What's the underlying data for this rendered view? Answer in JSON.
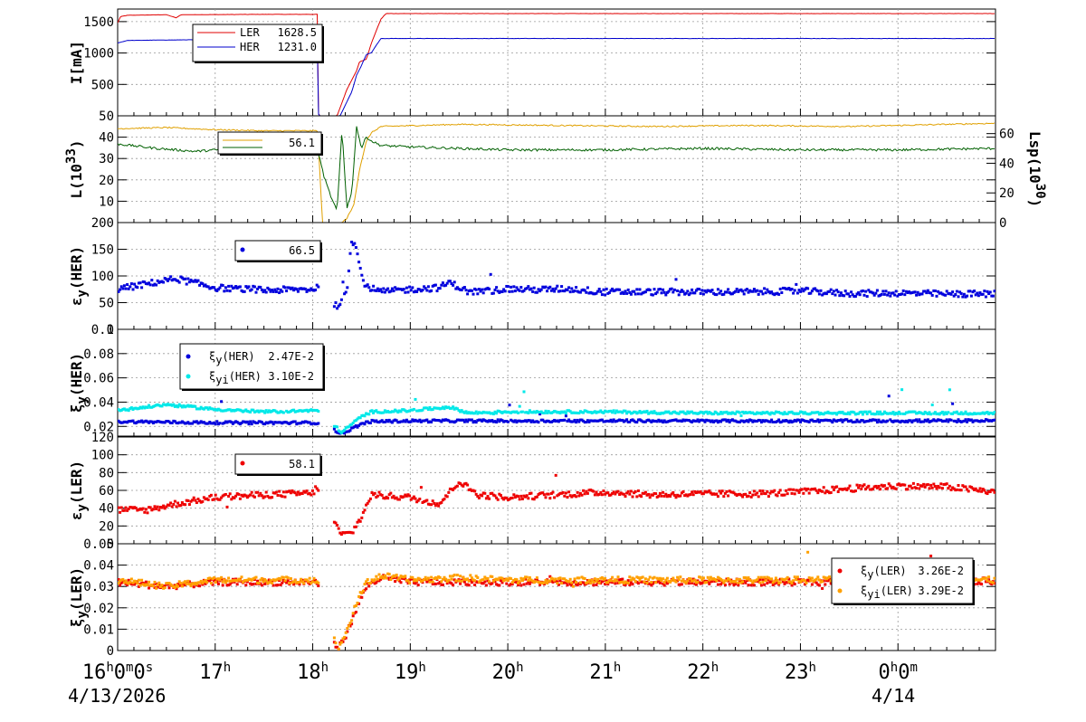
{
  "x_axis": {
    "ticks": [
      {
        "h": "16",
        "sub": [
          {
            "t": "h"
          },
          {
            "t": "0"
          },
          {
            "t": "m"
          },
          {
            "t": "0"
          },
          {
            "t": "s"
          }
        ]
      },
      {
        "h": "17",
        "sub": [
          {
            "t": "h"
          }
        ]
      },
      {
        "h": "18",
        "sub": [
          {
            "t": "h"
          }
        ]
      },
      {
        "h": "19",
        "sub": [
          {
            "t": "h"
          }
        ]
      },
      {
        "h": "20",
        "sub": [
          {
            "t": "h"
          }
        ]
      },
      {
        "h": "21",
        "sub": [
          {
            "t": "h"
          }
        ]
      },
      {
        "h": "22",
        "sub": [
          {
            "t": "h"
          }
        ]
      },
      {
        "h": "23",
        "sub": [
          {
            "t": "h"
          }
        ]
      },
      {
        "h": "0",
        "sub": [
          {
            "t": "h"
          },
          {
            "t": "0"
          },
          {
            "t": "m"
          }
        ]
      }
    ],
    "date_start": "4/13/2026",
    "date_next": "4/14",
    "range_hours": [
      16,
      25
    ]
  },
  "colors": {
    "ler": "#e00000",
    "her": "#0000cc",
    "lumi": "#e0a000",
    "lsp": "#006000",
    "xi_her_i": "#00e8e8",
    "xi_ler_i": "#ffa000",
    "grid": "#999999"
  },
  "chart_data": [
    {
      "type": "line",
      "id": "current",
      "ylabel": "I[mA]",
      "ylim": [
        0,
        1700
      ],
      "yticks": [
        "500",
        "1000",
        "1500"
      ],
      "series": [
        {
          "name": "LER",
          "value_text": "1628.5",
          "color": "#e00000",
          "points": [
            [
              16.0,
              1480
            ],
            [
              16.03,
              1580
            ],
            [
              16.1,
              1600
            ],
            [
              16.5,
              1610
            ],
            [
              16.6,
              1560
            ],
            [
              16.65,
              1610
            ],
            [
              17.5,
              1615
            ],
            [
              18.05,
              1615
            ],
            [
              18.06,
              0
            ],
            [
              18.25,
              0
            ],
            [
              18.35,
              420
            ],
            [
              18.45,
              720
            ],
            [
              18.48,
              860
            ],
            [
              18.55,
              900
            ],
            [
              18.6,
              1150
            ],
            [
              18.65,
              1350
            ],
            [
              18.7,
              1540
            ],
            [
              18.75,
              1628
            ],
            [
              25.0,
              1628
            ]
          ]
        },
        {
          "name": "HER",
          "value_text": "1231.0",
          "color": "#0000cc",
          "points": [
            [
              16.0,
              1160
            ],
            [
              16.1,
              1200
            ],
            [
              17.0,
              1215
            ],
            [
              18.05,
              1215
            ],
            [
              18.06,
              0
            ],
            [
              18.28,
              0
            ],
            [
              18.4,
              380
            ],
            [
              18.45,
              650
            ],
            [
              18.5,
              800
            ],
            [
              18.55,
              980
            ],
            [
              18.6,
              1000
            ],
            [
              18.65,
              1120
            ],
            [
              18.7,
              1231
            ],
            [
              25.0,
              1231
            ]
          ]
        }
      ]
    },
    {
      "type": "line",
      "id": "luminosity",
      "ylabel": "L(10",
      "ylabel_sup": "33",
      "ylabel_tail": ")",
      "ylabel_right": "Lsp(10",
      "ylabel_right_sup": "30",
      "ylabel_right_tail": ")",
      "ylim": [
        0,
        50
      ],
      "yticks": [
        "10",
        "20",
        "30",
        "40",
        "50"
      ],
      "ylim_right": [
        0,
        72
      ],
      "yticks_right": [
        "0",
        "20",
        "40",
        "60"
      ],
      "legend_text": "56.1",
      "series": [
        {
          "name": "L",
          "color": "#e0a000",
          "points": [
            [
              16.0,
              44
            ],
            [
              16.5,
              44.5
            ],
            [
              17.0,
              43.5
            ],
            [
              17.5,
              43
            ],
            [
              18.05,
              43
            ],
            [
              18.1,
              0
            ],
            [
              18.3,
              0
            ],
            [
              18.35,
              2
            ],
            [
              18.42,
              8
            ],
            [
              18.48,
              25
            ],
            [
              18.55,
              38
            ],
            [
              18.6,
              42
            ],
            [
              18.7,
              45
            ],
            [
              19.5,
              46
            ],
            [
              20.5,
              45.5
            ],
            [
              21.5,
              45
            ],
            [
              22.5,
              45.5
            ],
            [
              23.5,
              45
            ],
            [
              24.5,
              46
            ],
            [
              25.0,
              46.5
            ]
          ]
        },
        {
          "name": "Lsp",
          "color": "#006000",
          "axis": "right",
          "points": [
            [
              16.0,
              53
            ],
            [
              16.4,
              50
            ],
            [
              16.8,
              48
            ],
            [
              17.2,
              50
            ],
            [
              17.6,
              48
            ],
            [
              18.05,
              49
            ],
            [
              18.12,
              30
            ],
            [
              18.2,
              15
            ],
            [
              18.25,
              8
            ],
            [
              18.3,
              63
            ],
            [
              18.35,
              10
            ],
            [
              18.4,
              20
            ],
            [
              18.45,
              65
            ],
            [
              18.5,
              50
            ],
            [
              18.55,
              58
            ],
            [
              18.6,
              55
            ],
            [
              18.7,
              52
            ],
            [
              19.0,
              51
            ],
            [
              19.5,
              50
            ],
            [
              20.0,
              49
            ],
            [
              21.0,
              49
            ],
            [
              22.0,
              50
            ],
            [
              23.0,
              49
            ],
            [
              24.0,
              49
            ],
            [
              25.0,
              50
            ]
          ]
        }
      ]
    },
    {
      "type": "scatter",
      "id": "eps_her",
      "ylabel": "ε",
      "ylabel_sub": "y",
      "ylabel_tail": "(HER)",
      "ylim": [
        0,
        200
      ],
      "yticks": [
        "0",
        "50",
        "100",
        "150",
        "200"
      ],
      "series": [
        {
          "name": "",
          "value_text": "66.5",
          "color": "#0000dd",
          "points": [
            [
              16.0,
              75
            ],
            [
              16.3,
              85
            ],
            [
              16.6,
              95
            ],
            [
              17.0,
              78
            ],
            [
              17.5,
              73
            ],
            [
              18.0,
              75
            ],
            [
              18.05,
              80
            ],
            [
              18.1,
              70
            ],
            [
              18.2,
              55
            ],
            [
              18.25,
              40
            ],
            [
              18.3,
              60
            ],
            [
              18.35,
              75
            ],
            [
              18.4,
              170
            ],
            [
              18.45,
              150
            ],
            [
              18.5,
              100
            ],
            [
              18.55,
              80
            ],
            [
              18.7,
              70
            ],
            [
              19.0,
              75
            ],
            [
              19.3,
              78
            ],
            [
              19.4,
              88
            ],
            [
              19.6,
              70
            ],
            [
              19.8,
              72
            ],
            [
              20.0,
              76
            ],
            [
              20.3,
              74
            ],
            [
              20.6,
              76
            ],
            [
              21.0,
              70
            ],
            [
              21.5,
              70
            ],
            [
              22.0,
              70
            ],
            [
              22.5,
              70
            ],
            [
              23.0,
              72
            ],
            [
              23.5,
              67
            ],
            [
              24.0,
              68
            ],
            [
              24.5,
              66
            ],
            [
              25.0,
              66.5
            ]
          ]
        }
      ]
    },
    {
      "type": "scatter",
      "id": "xi_her",
      "ylabel": "ξ",
      "ylabel_sub": "y",
      "ylabel_tail": "(HER)",
      "ylim": [
        0.012,
        0.1
      ],
      "yticks": [
        "0.02",
        "0.04",
        "0.06",
        "0.08",
        "0.1"
      ],
      "series": [
        {
          "name": "ξ",
          "name_sub": "y",
          "name_tail": "(HER)",
          "value_text": "2.47E-2",
          "color": "#0000dd",
          "points": [
            [
              16.0,
              0.024
            ],
            [
              17.0,
              0.023
            ],
            [
              18.0,
              0.023
            ],
            [
              18.05,
              0.023
            ],
            [
              18.3,
              0.014
            ],
            [
              18.4,
              0.018
            ],
            [
              18.5,
              0.022
            ],
            [
              18.6,
              0.024
            ],
            [
              19.0,
              0.0245
            ],
            [
              20.0,
              0.0245
            ],
            [
              21.0,
              0.0245
            ],
            [
              22.0,
              0.0245
            ],
            [
              23.0,
              0.0245
            ],
            [
              24.0,
              0.0245
            ],
            [
              25.0,
              0.0247
            ]
          ]
        },
        {
          "name": "ξ",
          "name_sub": "yi",
          "name_tail": "(HER)",
          "value_text": "3.10E-2",
          "color": "#00e8e8",
          "points": [
            [
              16.0,
              0.033
            ],
            [
              16.5,
              0.038
            ],
            [
              17.0,
              0.034
            ],
            [
              17.5,
              0.032
            ],
            [
              18.0,
              0.033
            ],
            [
              18.05,
              0.033
            ],
            [
              18.3,
              0.015
            ],
            [
              18.4,
              0.022
            ],
            [
              18.5,
              0.028
            ],
            [
              18.6,
              0.032
            ],
            [
              19.0,
              0.033
            ],
            [
              19.4,
              0.036
            ],
            [
              19.6,
              0.031
            ],
            [
              20.0,
              0.032
            ],
            [
              21.0,
              0.032
            ],
            [
              22.0,
              0.031
            ],
            [
              23.0,
              0.031
            ],
            [
              24.0,
              0.031
            ],
            [
              25.0,
              0.031
            ]
          ]
        }
      ]
    },
    {
      "type": "scatter",
      "id": "eps_ler",
      "ylabel": "ε",
      "ylabel_sub": "y",
      "ylabel_tail": "(LER)",
      "ylim": [
        0,
        120
      ],
      "yticks": [
        "0",
        "20",
        "40",
        "60",
        "80",
        "100",
        "120"
      ],
      "series": [
        {
          "name": "",
          "value_text": "58.1",
          "color": "#ee0000",
          "points": [
            [
              16.0,
              38
            ],
            [
              16.3,
              38
            ],
            [
              16.6,
              45
            ],
            [
              17.0,
              52
            ],
            [
              17.5,
              55
            ],
            [
              18.0,
              57
            ],
            [
              18.05,
              65
            ],
            [
              18.1,
              45
            ],
            [
              18.3,
              10
            ],
            [
              18.4,
              12
            ],
            [
              18.5,
              30
            ],
            [
              18.6,
              55
            ],
            [
              19.0,
              52
            ],
            [
              19.3,
              45
            ],
            [
              19.5,
              70
            ],
            [
              19.7,
              55
            ],
            [
              20.0,
              52
            ],
            [
              20.5,
              55
            ],
            [
              21.0,
              58
            ],
            [
              21.5,
              55
            ],
            [
              22.0,
              56
            ],
            [
              22.5,
              56
            ],
            [
              23.0,
              58
            ],
            [
              23.5,
              62
            ],
            [
              24.0,
              65
            ],
            [
              24.5,
              64
            ],
            [
              25.0,
              58.1
            ]
          ]
        }
      ]
    },
    {
      "type": "scatter",
      "id": "xi_ler",
      "ylabel": "ξ",
      "ylabel_sub": "y",
      "ylabel_tail": "(LER)",
      "ylim": [
        0,
        0.05
      ],
      "yticks": [
        "0",
        "0.01",
        "0.02",
        "0.03",
        "0.04",
        "0.05"
      ],
      "series": [
        {
          "name": "ξ",
          "name_sub": "y",
          "name_tail": "(LER)",
          "value_text": "3.26E-2",
          "color": "#ee0000",
          "points": [
            [
              16.0,
              0.032
            ],
            [
              16.5,
              0.03
            ],
            [
              17.0,
              0.032
            ],
            [
              18.0,
              0.032
            ],
            [
              18.05,
              0.032
            ],
            [
              18.25,
              0.0
            ],
            [
              18.35,
              0.008
            ],
            [
              18.45,
              0.02
            ],
            [
              18.55,
              0.03
            ],
            [
              18.7,
              0.034
            ],
            [
              19.0,
              0.032
            ],
            [
              19.5,
              0.032
            ],
            [
              20.0,
              0.032
            ],
            [
              21.0,
              0.032
            ],
            [
              22.0,
              0.032
            ],
            [
              23.0,
              0.032
            ],
            [
              24.0,
              0.032
            ],
            [
              25.0,
              0.0326
            ]
          ]
        },
        {
          "name": "ξ",
          "name_sub": "yi",
          "name_tail": "(LER)",
          "value_text": "3.29E-2",
          "color": "#ffa000",
          "points": [
            [
              16.0,
              0.033
            ],
            [
              16.5,
              0.03
            ],
            [
              17.0,
              0.033
            ],
            [
              18.0,
              0.033
            ],
            [
              18.05,
              0.033
            ],
            [
              18.25,
              0.0
            ],
            [
              18.35,
              0.009
            ],
            [
              18.45,
              0.022
            ],
            [
              18.55,
              0.032
            ],
            [
              18.7,
              0.035
            ],
            [
              19.0,
              0.033
            ],
            [
              19.5,
              0.034
            ],
            [
              20.0,
              0.033
            ],
            [
              21.0,
              0.033
            ],
            [
              22.0,
              0.033
            ],
            [
              23.0,
              0.033
            ],
            [
              24.0,
              0.034
            ],
            [
              25.0,
              0.0329
            ]
          ]
        }
      ]
    }
  ]
}
